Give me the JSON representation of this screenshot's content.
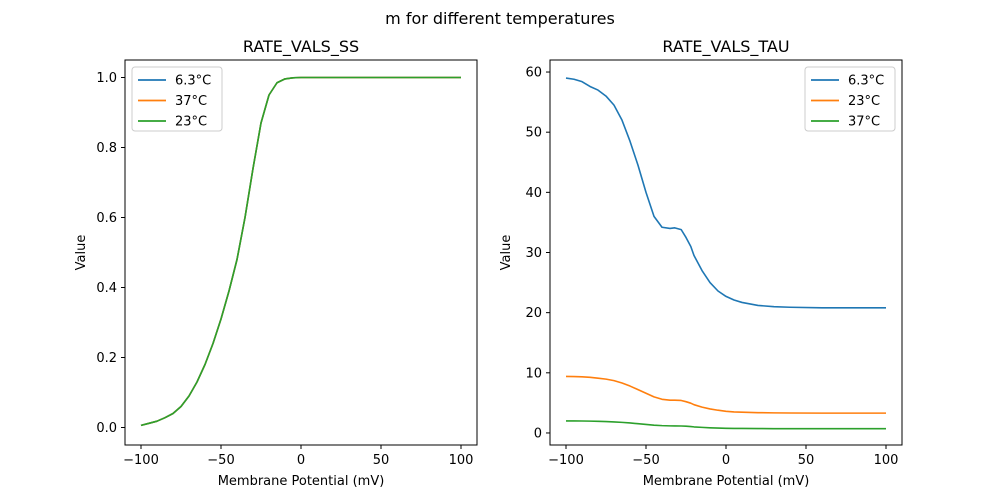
{
  "figure": {
    "suptitle": "m for different temperatures"
  },
  "chart_data": [
    {
      "type": "line",
      "title": "RATE_VALS_SS",
      "xlabel": "Membrane Potential (mV)",
      "ylabel": "Value",
      "xlim": [
        -110,
        110
      ],
      "ylim": [
        -0.05,
        1.05
      ],
      "xticks": [
        -100,
        -50,
        0,
        50,
        100
      ],
      "xtick_labels": [
        "−100",
        "−50",
        "0",
        "50",
        "100"
      ],
      "yticks": [
        0.0,
        0.2,
        0.4,
        0.6,
        0.8,
        1.0
      ],
      "ytick_labels": [
        "0.0",
        "0.2",
        "0.4",
        "0.6",
        "0.8",
        "1.0"
      ],
      "grid": false,
      "legend_position": "top-left",
      "x": [
        -100,
        -95,
        -90,
        -85,
        -80,
        -75,
        -70,
        -65,
        -60,
        -55,
        -50,
        -45,
        -40,
        -35,
        -30,
        -25,
        -20,
        -15,
        -10,
        -5,
        0,
        10,
        20,
        40,
        60,
        80,
        100
      ],
      "series": [
        {
          "name": "6.3°C",
          "color": "#1f77b4",
          "values": [
            0.006,
            0.012,
            0.018,
            0.028,
            0.04,
            0.06,
            0.09,
            0.13,
            0.18,
            0.24,
            0.31,
            0.39,
            0.48,
            0.6,
            0.74,
            0.87,
            0.95,
            0.985,
            0.996,
            0.999,
            1.0,
            1.0,
            1.0,
            1.0,
            1.0,
            1.0,
            1.0
          ]
        },
        {
          "name": "37°C",
          "color": "#ff7f0e",
          "values": [
            0.006,
            0.012,
            0.018,
            0.028,
            0.04,
            0.06,
            0.09,
            0.13,
            0.18,
            0.24,
            0.31,
            0.39,
            0.48,
            0.6,
            0.74,
            0.87,
            0.95,
            0.985,
            0.996,
            0.999,
            1.0,
            1.0,
            1.0,
            1.0,
            1.0,
            1.0,
            1.0
          ]
        },
        {
          "name": "23°C",
          "color": "#2ca02c",
          "values": [
            0.006,
            0.012,
            0.018,
            0.028,
            0.04,
            0.06,
            0.09,
            0.13,
            0.18,
            0.24,
            0.31,
            0.39,
            0.48,
            0.6,
            0.74,
            0.87,
            0.95,
            0.985,
            0.996,
            0.999,
            1.0,
            1.0,
            1.0,
            1.0,
            1.0,
            1.0,
            1.0
          ]
        }
      ]
    },
    {
      "type": "line",
      "title": "RATE_VALS_TAU",
      "xlabel": "Membrane Potential (mV)",
      "ylabel": "Value",
      "xlim": [
        -110,
        110
      ],
      "ylim": [
        -2,
        62
      ],
      "xticks": [
        -100,
        -50,
        0,
        50,
        100
      ],
      "xtick_labels": [
        "−100",
        "−50",
        "0",
        "50",
        "100"
      ],
      "yticks": [
        0,
        10,
        20,
        30,
        40,
        50,
        60
      ],
      "ytick_labels": [
        "0",
        "10",
        "20",
        "30",
        "40",
        "50",
        "60"
      ],
      "grid": false,
      "legend_position": "top-right",
      "x": [
        -100,
        -95,
        -90,
        -85,
        -80,
        -75,
        -70,
        -65,
        -60,
        -55,
        -50,
        -45,
        -40,
        -35,
        -32,
        -28,
        -25,
        -22,
        -20,
        -15,
        -10,
        -5,
        0,
        5,
        10,
        20,
        30,
        40,
        60,
        80,
        100
      ],
      "series": [
        {
          "name": "6.3°C",
          "color": "#1f77b4",
          "values": [
            59.0,
            58.8,
            58.4,
            57.6,
            57.0,
            56.0,
            54.5,
            52.0,
            48.5,
            44.5,
            40.0,
            36.0,
            34.2,
            34.0,
            34.1,
            33.8,
            32.5,
            31.0,
            29.5,
            27.0,
            25.0,
            23.6,
            22.7,
            22.1,
            21.7,
            21.2,
            21.0,
            20.9,
            20.8,
            20.8,
            20.8
          ]
        },
        {
          "name": "23°C",
          "color": "#ff7f0e",
          "values": [
            9.4,
            9.38,
            9.33,
            9.25,
            9.1,
            8.95,
            8.7,
            8.3,
            7.8,
            7.2,
            6.6,
            6.0,
            5.6,
            5.45,
            5.45,
            5.4,
            5.2,
            4.95,
            4.7,
            4.3,
            4.0,
            3.78,
            3.6,
            3.5,
            3.45,
            3.38,
            3.34,
            3.32,
            3.3,
            3.3,
            3.3
          ]
        },
        {
          "name": "37°C",
          "color": "#2ca02c",
          "values": [
            2.0,
            2.0,
            1.99,
            1.97,
            1.94,
            1.9,
            1.84,
            1.76,
            1.66,
            1.54,
            1.42,
            1.3,
            1.22,
            1.18,
            1.17,
            1.16,
            1.12,
            1.06,
            1.01,
            0.93,
            0.86,
            0.81,
            0.78,
            0.76,
            0.75,
            0.73,
            0.72,
            0.71,
            0.71,
            0.71,
            0.71
          ]
        }
      ]
    }
  ]
}
